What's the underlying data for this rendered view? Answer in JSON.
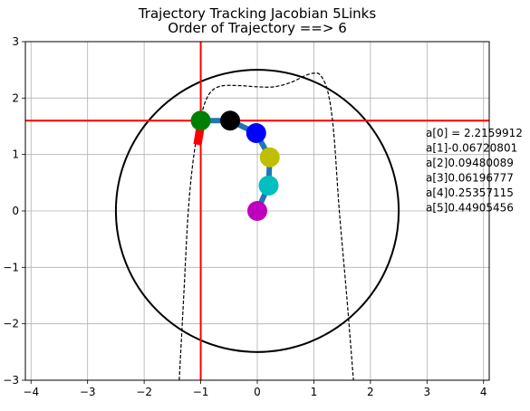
{
  "title": "Trajectory Tracking Jacobian 5Links",
  "subtitle": "Order of Trajectory ==> 6",
  "chart_data": {
    "type": "scatter",
    "title": "Trajectory Tracking Jacobian 5Links",
    "subtitle": "Order of Trajectory ==> 6",
    "xlabel": "",
    "ylabel": "",
    "xlim": [
      -4.1,
      4.1
    ],
    "ylim": [
      -3,
      3
    ],
    "x_ticks": [
      "−4",
      "−3",
      "−2",
      "−1",
      "0",
      "1",
      "2",
      "3",
      "4"
    ],
    "y_ticks": [
      "3",
      "2",
      "1",
      "0",
      "−1",
      "−2",
      "−3"
    ],
    "grid": true,
    "workspace_circle": {
      "center": [
        0,
        0
      ],
      "radius": 2.5,
      "color": "#000000"
    },
    "crosshair": {
      "x": -1.0,
      "y": 1.6,
      "color": "#ff0000"
    },
    "trajectory": {
      "style": "dashed",
      "color": "#000000",
      "points": [
        [
          -1.38,
          -3.0
        ],
        [
          -1.3,
          -1.5
        ],
        [
          -1.22,
          0.0
        ],
        [
          -1.12,
          1.0
        ],
        [
          -1.0,
          1.65
        ],
        [
          -0.9,
          1.98
        ],
        [
          -0.78,
          2.15
        ],
        [
          -0.6,
          2.22
        ],
        [
          -0.3,
          2.22
        ],
        [
          0.0,
          2.2
        ],
        [
          0.3,
          2.2
        ],
        [
          0.6,
          2.28
        ],
        [
          0.85,
          2.4
        ],
        [
          1.0,
          2.44
        ],
        [
          1.12,
          2.4
        ],
        [
          1.25,
          2.1
        ],
        [
          1.35,
          1.4
        ],
        [
          1.45,
          0.0
        ],
        [
          1.58,
          -1.5
        ],
        [
          1.7,
          -3.0
        ]
      ]
    },
    "links": {
      "color": "#1f77b4",
      "points": [
        [
          0.0,
          0.0
        ],
        [
          0.2,
          0.45
        ],
        [
          0.22,
          0.95
        ],
        [
          -0.02,
          1.38
        ],
        [
          -0.48,
          1.6
        ],
        [
          -1.0,
          1.6
        ]
      ]
    },
    "joints": [
      {
        "x": 0.0,
        "y": 0.0,
        "color": "#bf00bf"
      },
      {
        "x": 0.2,
        "y": 0.45,
        "color": "#00bfbf"
      },
      {
        "x": 0.22,
        "y": 0.95,
        "color": "#bfbf00"
      },
      {
        "x": -0.02,
        "y": 1.38,
        "color": "#0000ff"
      },
      {
        "x": -0.48,
        "y": 1.6,
        "color": "#000000"
      },
      {
        "x": -1.0,
        "y": 1.6,
        "color": "#008000"
      }
    ],
    "end_effector_marker": {
      "x": -1.05,
      "y": 1.35,
      "color": "#ff0000"
    },
    "annotations": [
      "a[0] = 2.2159912",
      "a[1]-0.06720801",
      "a[2]0.09480089",
      "a[3]0.06196777",
      "a[4]0.25357115",
      "a[5]0.44905456"
    ]
  }
}
